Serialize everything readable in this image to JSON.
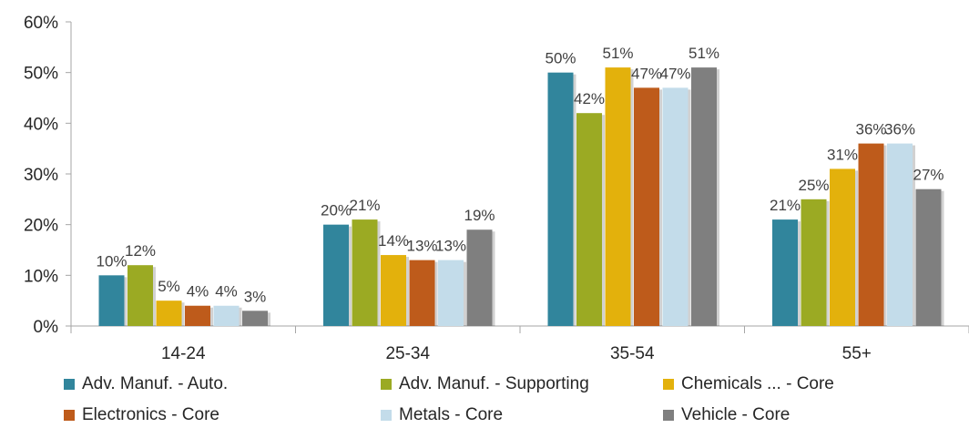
{
  "chart_data": {
    "type": "bar",
    "categories": [
      "14-24",
      "25-34",
      "35-54",
      "55+"
    ],
    "series": [
      {
        "name": "Adv. Manuf. - Auto.",
        "color": "#31859C",
        "values": [
          10,
          20,
          50,
          21
        ],
        "labels": [
          "10%",
          "20%",
          "50%",
          "21%"
        ]
      },
      {
        "name": "Adv. Manuf. - Supporting",
        "color": "#9BAA23",
        "values": [
          12,
          21,
          42,
          25
        ],
        "labels": [
          "12%",
          "21%",
          "42%",
          "25%"
        ]
      },
      {
        "name": "Chemicals ... - Core",
        "color": "#E3B10C",
        "values": [
          5,
          14,
          51,
          31
        ],
        "labels": [
          "5%",
          "14%",
          "51%",
          "31%"
        ]
      },
      {
        "name": "Electronics - Core",
        "color": "#BE5B1B",
        "values": [
          4,
          13,
          47,
          36
        ],
        "labels": [
          "4%",
          "13%",
          "47%",
          "36%"
        ]
      },
      {
        "name": "Metals - Core",
        "color": "#C3DCEA",
        "values": [
          4,
          13,
          47,
          36
        ],
        "labels": [
          "4%",
          "13%",
          "47%",
          "36%"
        ]
      },
      {
        "name": "Vehicle - Core",
        "color": "#7F7F7F",
        "values": [
          3,
          19,
          51,
          27
        ],
        "labels": [
          "3%",
          "19%",
          "51%",
          "27%"
        ]
      }
    ],
    "ylim": [
      0,
      60
    ],
    "yticks": [
      "0%",
      "10%",
      "20%",
      "30%",
      "40%",
      "50%",
      "60%"
    ],
    "gridlines": false,
    "legend_position": "bottom"
  }
}
